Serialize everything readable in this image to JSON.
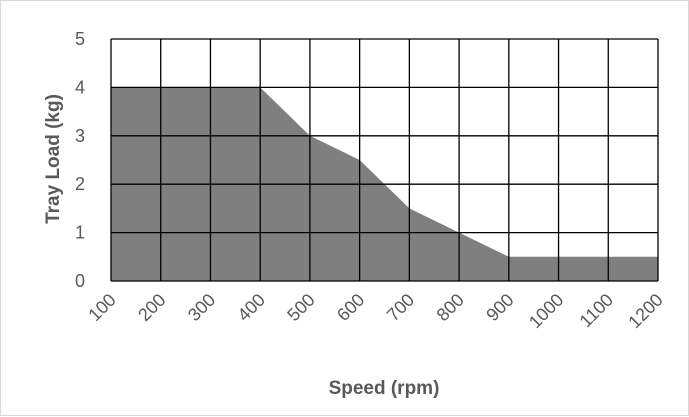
{
  "chart_data": {
    "type": "area",
    "title": "",
    "xlabel": "Speed (rpm)",
    "ylabel": "Tray Load (kg)",
    "x_ticks": [
      "100",
      "200",
      "300",
      "400",
      "500",
      "600",
      "700",
      "800",
      "900",
      "1000",
      "1100",
      "1200"
    ],
    "y_ticks": [
      "0",
      "1",
      "2",
      "3",
      "4",
      "5"
    ],
    "xlim": [
      100,
      1200
    ],
    "ylim": [
      0,
      5
    ],
    "grid": true,
    "legend": "none",
    "series": [
      {
        "x": [
          100,
          200,
          300,
          400,
          500,
          600,
          700,
          800,
          900,
          1000,
          1100,
          1200
        ],
        "values": [
          4,
          4,
          4,
          4,
          3,
          2.5,
          1.5,
          1,
          0.5,
          0.5,
          0.5,
          0.5
        ]
      }
    ],
    "colors": {
      "fill": "#7f7f7f",
      "grid": "#000000",
      "text": "#595959"
    }
  }
}
